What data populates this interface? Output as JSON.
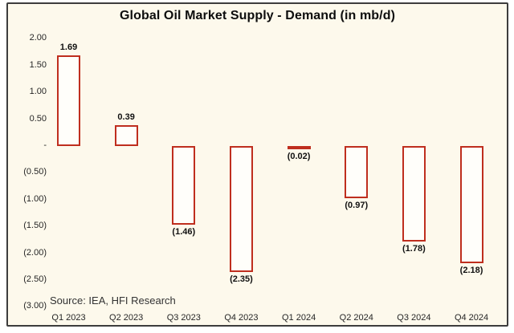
{
  "chart": {
    "title": "Global Oil Market Supply - Demand (in mb/d)",
    "source_note": "Source: IEA, HFI Research",
    "colors": {
      "bar_border": "#bf2e1e",
      "bar_fill": "#fffefa",
      "plot_background": "#fdf9ec",
      "frame_border": "#3d3d3d",
      "title_text": "#0d0d0d",
      "axis_text": "#262626"
    }
  },
  "chart_data": {
    "type": "bar",
    "title": "Global Oil Market Supply - Demand (in mb/d)",
    "xlabel": "",
    "ylabel": "",
    "categories": [
      "Q1 2023",
      "Q2 2023",
      "Q3 2023",
      "Q4 2023",
      "Q1 2024",
      "Q2 2024",
      "Q3 2024",
      "Q4 2024"
    ],
    "values": [
      1.69,
      0.39,
      -1.46,
      -2.35,
      -0.02,
      -0.97,
      -1.78,
      -2.18
    ],
    "data_labels": [
      "1.69",
      "0.39",
      "(1.46)",
      "(2.35)",
      "(0.02)",
      "(0.97)",
      "(1.78)",
      "(2.18)"
    ],
    "y_ticks": [
      {
        "label": "2.00",
        "value": 2.0
      },
      {
        "label": "1.50",
        "value": 1.5
      },
      {
        "label": "1.00",
        "value": 1.0
      },
      {
        "label": "0.50",
        "value": 0.5
      },
      {
        "label": "-",
        "value": 0.0
      },
      {
        "label": "(0.50)",
        "value": -0.5
      },
      {
        "label": "(1.00)",
        "value": -1.0
      },
      {
        "label": "(1.50)",
        "value": -1.5
      },
      {
        "label": "(2.00)",
        "value": -2.0
      },
      {
        "label": "(2.50)",
        "value": -2.5
      },
      {
        "label": "(3.00)",
        "value": -3.0
      }
    ],
    "ylim": [
      -3.0,
      2.0
    ],
    "grid": false,
    "legend": "none",
    "source_note": "Source: IEA, HFI Research"
  }
}
